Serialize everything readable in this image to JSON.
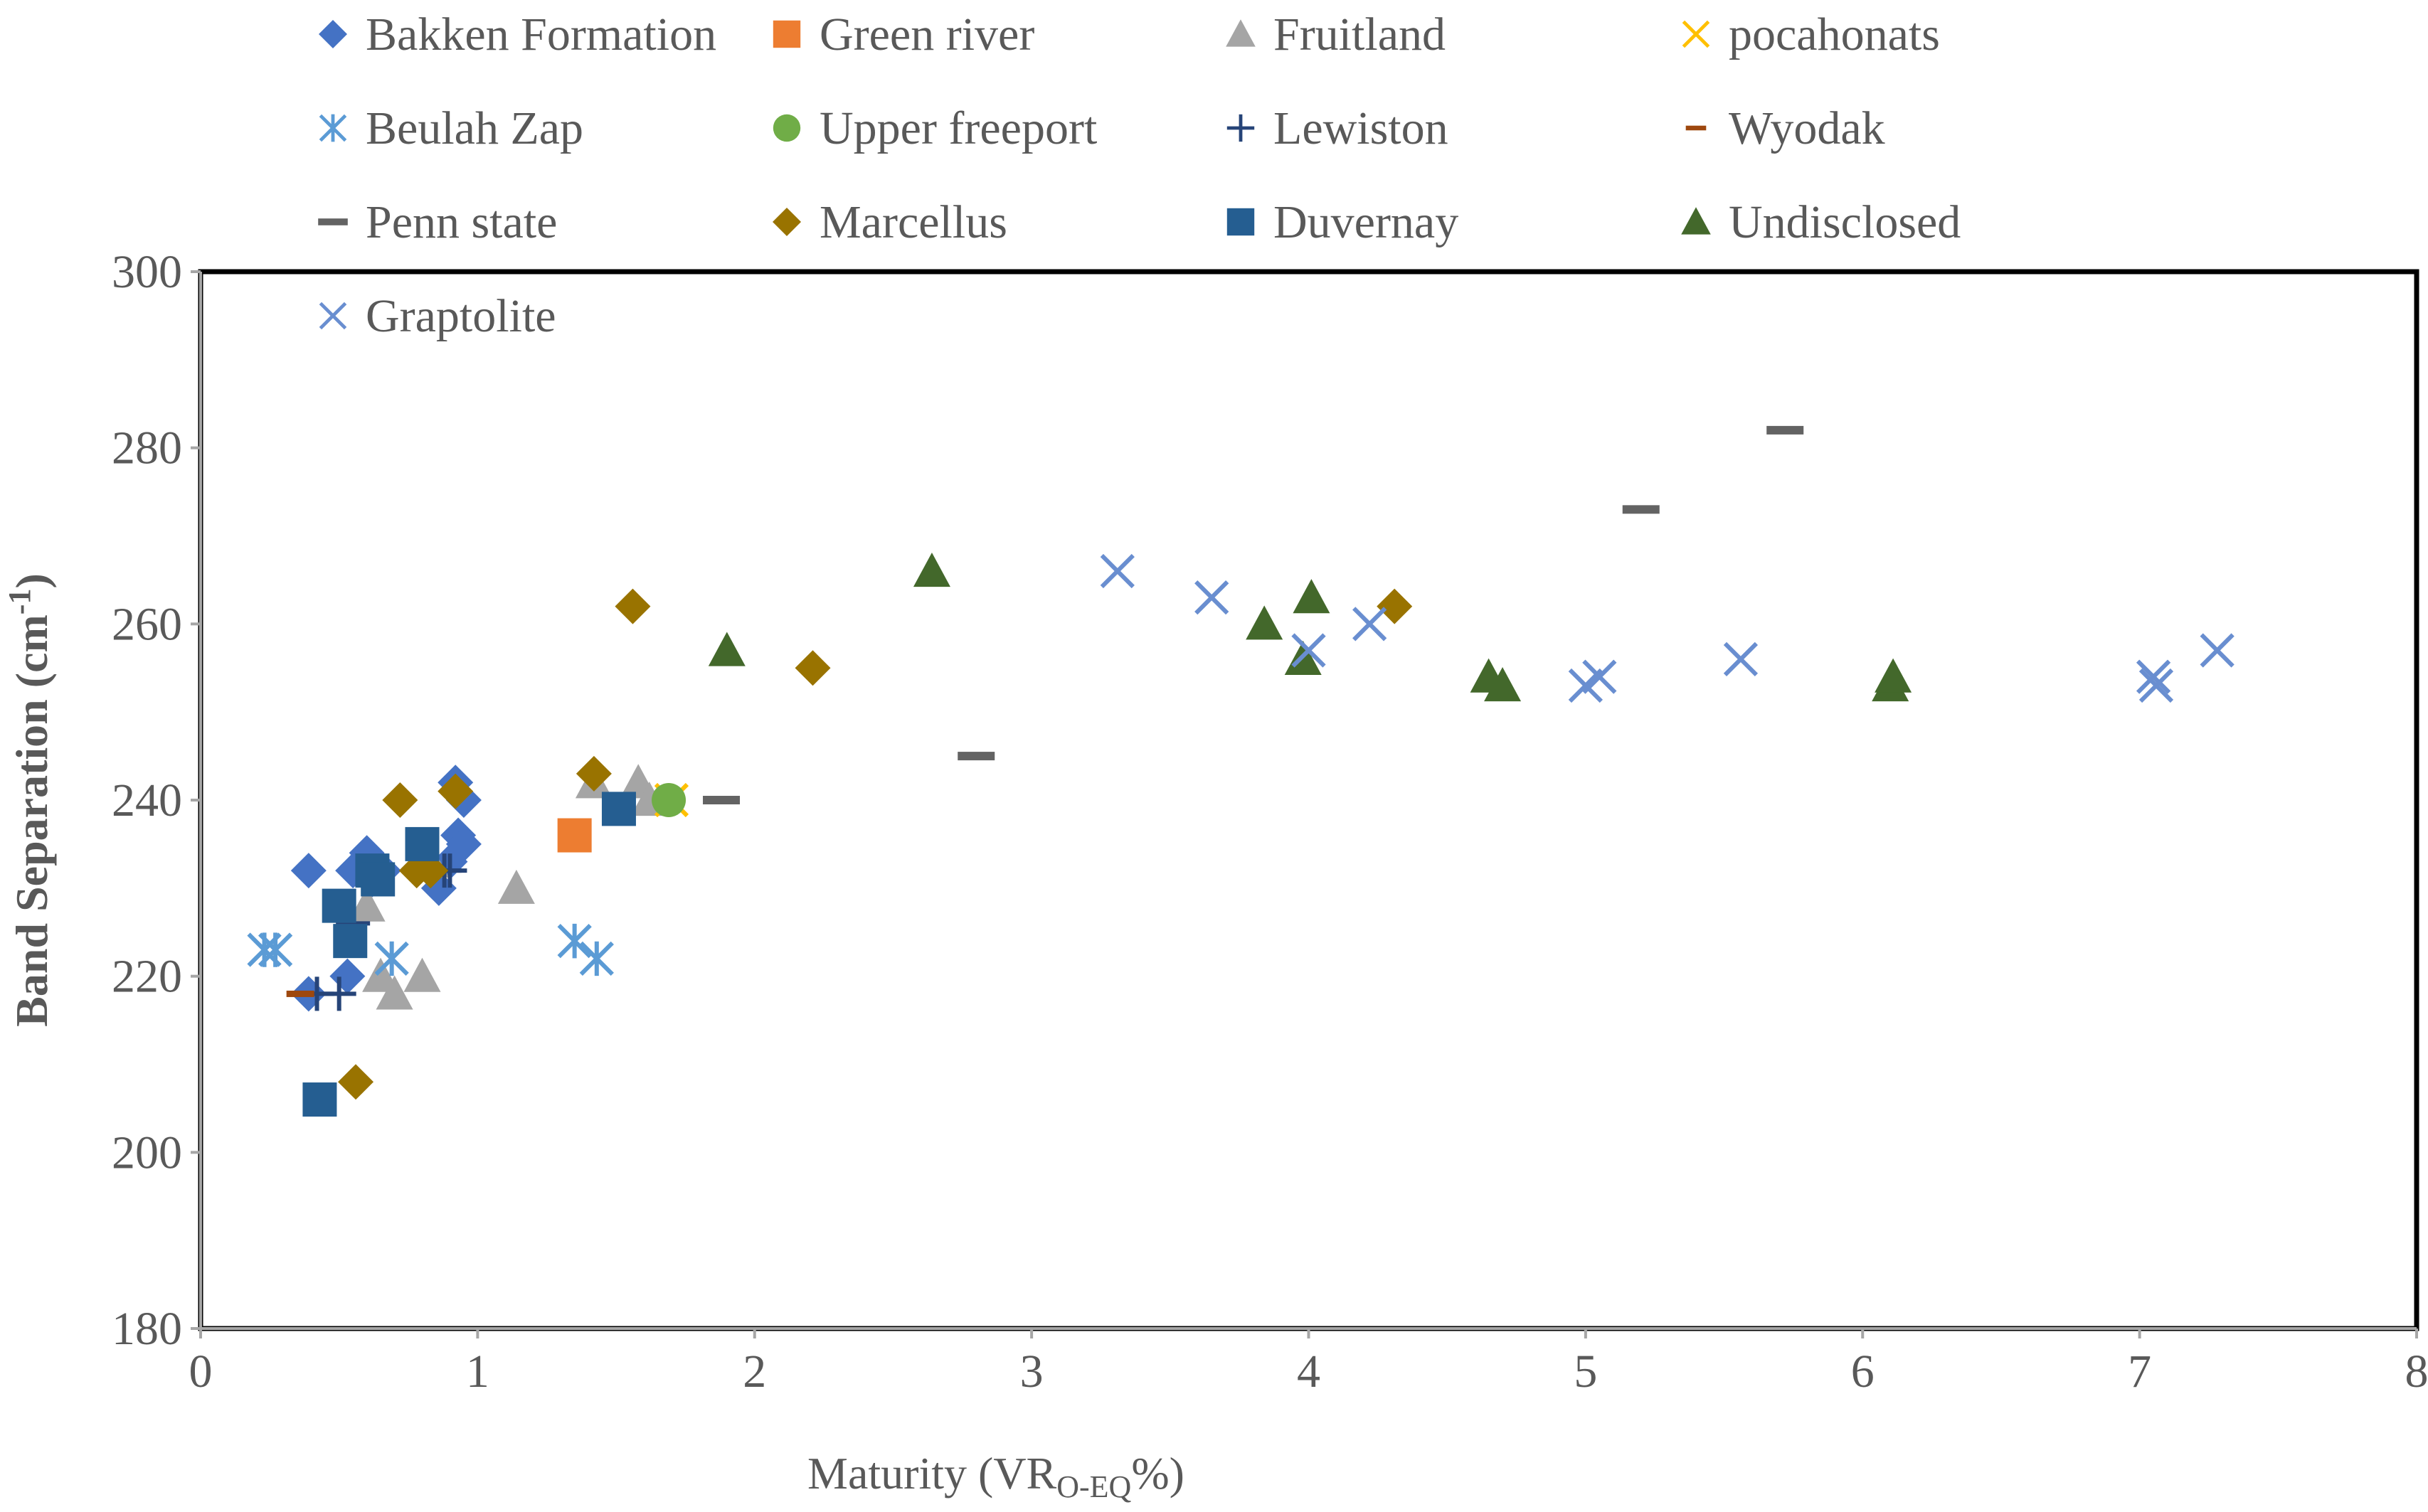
{
  "chart_data": {
    "type": "scatter",
    "title": "",
    "xlabel": {
      "main": "Maturity (VR",
      "sub": "O-EQ",
      "tail": "%)"
    },
    "ylabel": {
      "main": "Band Separation (cm",
      "sup": "-1",
      "tail": ")"
    },
    "xlim": [
      0,
      8
    ],
    "ylim": [
      180,
      300
    ],
    "xticks": [
      0,
      1,
      2,
      3,
      4,
      5,
      6,
      7,
      8
    ],
    "yticks": [
      180,
      200,
      220,
      240,
      260,
      280,
      300
    ],
    "grid": false,
    "legend_position": "top",
    "series": [
      {
        "name": "Bakken Formation",
        "marker": "diamond",
        "color": "#4472C4",
        "points": [
          [
            0.39,
            232
          ],
          [
            0.39,
            218
          ],
          [
            0.53,
            220
          ],
          [
            0.55,
            232
          ],
          [
            0.6,
            234
          ],
          [
            0.62,
            231
          ],
          [
            0.66,
            232
          ],
          [
            0.86,
            230
          ],
          [
            0.9,
            233
          ],
          [
            0.92,
            242
          ],
          [
            0.93,
            236
          ],
          [
            0.95,
            240
          ],
          [
            0.95,
            235
          ]
        ]
      },
      {
        "name": "Green river",
        "marker": "square",
        "color": "#ED7D31",
        "points": [
          [
            1.35,
            236
          ]
        ]
      },
      {
        "name": "Fruitland",
        "marker": "triangle",
        "color": "#A5A5A5",
        "points": [
          [
            0.6,
            228
          ],
          [
            0.65,
            220
          ],
          [
            0.7,
            218
          ],
          [
            0.8,
            220
          ],
          [
            0.83,
            233
          ],
          [
            1.14,
            230
          ],
          [
            1.42,
            242
          ],
          [
            1.58,
            242
          ],
          [
            1.62,
            240
          ]
        ]
      },
      {
        "name": "pocahonats",
        "marker": "x",
        "color": "#FFC000",
        "points": [
          [
            1.7,
            240
          ]
        ]
      },
      {
        "name": "Beulah Zap",
        "marker": "asterisk",
        "color": "#5B9BD5",
        "points": [
          [
            0.23,
            223
          ],
          [
            0.27,
            223
          ],
          [
            0.69,
            222
          ],
          [
            1.35,
            224
          ],
          [
            1.43,
            222
          ]
        ]
      },
      {
        "name": "Upper freeport",
        "marker": "circle",
        "color": "#70AD47",
        "points": [
          [
            1.69,
            240
          ]
        ]
      },
      {
        "name": "Lewiston",
        "marker": "plus",
        "color": "#264478",
        "points": [
          [
            0.42,
            218
          ],
          [
            0.5,
            218
          ],
          [
            0.55,
            226
          ],
          [
            0.88,
            232
          ],
          [
            0.9,
            232
          ]
        ]
      },
      {
        "name": "Wyodak",
        "marker": "dash",
        "color": "#9E480E",
        "points": [
          [
            0.36,
            218
          ]
        ]
      },
      {
        "name": "Penn state",
        "marker": "dash",
        "color": "#636363",
        "points": [
          [
            1.88,
            240
          ],
          [
            2.8,
            245
          ],
          [
            5.2,
            273
          ],
          [
            5.72,
            282
          ]
        ]
      },
      {
        "name": "Marcellus",
        "marker": "diamond",
        "color": "#997300",
        "points": [
          [
            0.56,
            208
          ],
          [
            0.72,
            240
          ],
          [
            0.78,
            232
          ],
          [
            0.83,
            232
          ],
          [
            0.92,
            241
          ],
          [
            1.42,
            243
          ],
          [
            1.56,
            262
          ],
          [
            2.21,
            255
          ],
          [
            4.31,
            262
          ]
        ]
      },
      {
        "name": "Duvernay",
        "marker": "square",
        "color": "#255E91",
        "points": [
          [
            0.43,
            206
          ],
          [
            0.5,
            228
          ],
          [
            0.54,
            224
          ],
          [
            0.62,
            232
          ],
          [
            0.64,
            231
          ],
          [
            0.8,
            235
          ],
          [
            1.51,
            239
          ]
        ]
      },
      {
        "name": "Undisclosed",
        "marker": "triangle",
        "color": "#43682B",
        "points": [
          [
            1.9,
            257
          ],
          [
            2.64,
            266
          ],
          [
            3.84,
            260
          ],
          [
            3.98,
            256
          ],
          [
            4.01,
            263
          ],
          [
            4.65,
            254
          ],
          [
            4.7,
            253
          ],
          [
            6.1,
            253
          ],
          [
            6.11,
            254
          ]
        ]
      },
      {
        "name": "Graptolite",
        "marker": "x",
        "color": "#698ED0",
        "points": [
          [
            3.31,
            266
          ],
          [
            3.65,
            263
          ],
          [
            4.0,
            257
          ],
          [
            4.22,
            260
          ],
          [
            5.0,
            253
          ],
          [
            5.05,
            254
          ],
          [
            5.56,
            256
          ],
          [
            7.05,
            254
          ],
          [
            7.06,
            253
          ],
          [
            7.28,
            257
          ]
        ]
      }
    ]
  }
}
